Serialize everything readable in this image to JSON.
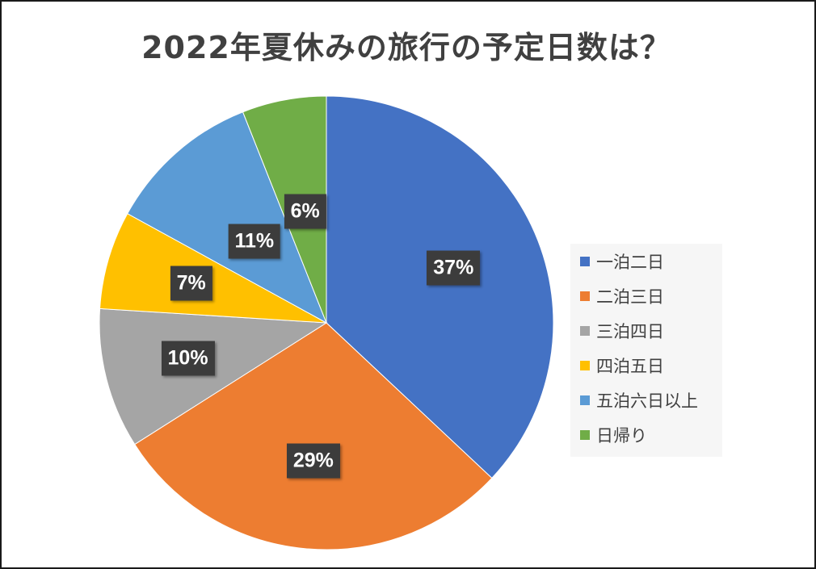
{
  "chart_data": {
    "type": "pie",
    "title": "2022年夏休みの旅行の予定日数は？",
    "categories": [
      "一泊二日",
      "二泊三日",
      "三泊四日",
      "四泊五日",
      "五泊六日以上",
      "日帰り"
    ],
    "values": [
      37,
      29,
      10,
      7,
      11,
      6
    ],
    "value_labels": [
      "37%",
      "29%",
      "10%",
      "7%",
      "11%",
      "6%"
    ],
    "colors": [
      "#4472C4",
      "#ED7D31",
      "#A5A5A5",
      "#FFC000",
      "#5B9BD5",
      "#70AD47"
    ],
    "start": "12 o'clock",
    "direction": "clockwise",
    "legend_position": "right"
  }
}
